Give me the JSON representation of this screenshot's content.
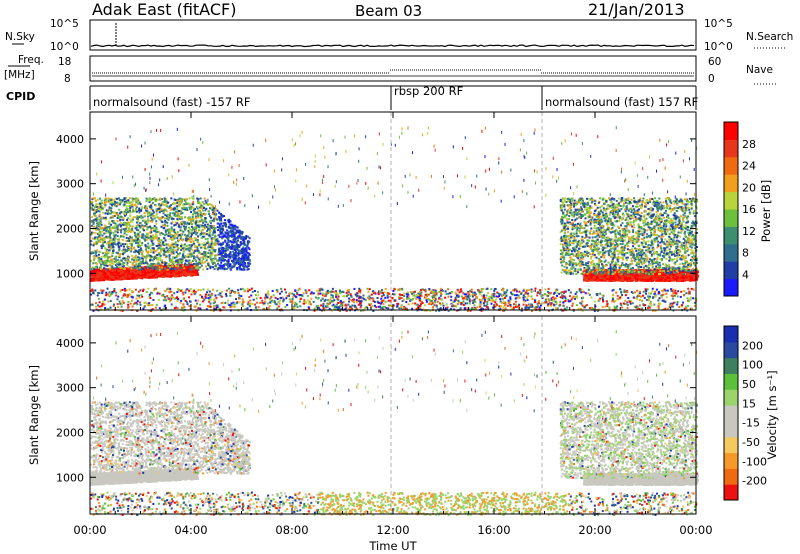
{
  "header": {
    "station": "Adak East (fitACF)",
    "beam": "Beam 03",
    "date": "21/Jan/2013"
  },
  "panel_labels": {
    "nsky": "N.Sky",
    "nsearch": "N.Search",
    "freq_line1": "Freq.",
    "freq_line2": "[MHz]",
    "nave": "Nave",
    "cpid": "CPID",
    "nsky_ticks": [
      "10^5",
      "10^0"
    ],
    "nsearch_ticks": [
      "10^5",
      "10^0"
    ],
    "freq_ticks": [
      "18",
      "8"
    ],
    "nave_ticks": [
      "60",
      "0"
    ]
  },
  "cpid": [
    {
      "label": "normalsound (fast) -157 RF",
      "start_hour": 0,
      "end_hour": 12
    },
    {
      "label": "rbsp 200 RF",
      "start_hour": 12,
      "end_hour": 18
    },
    {
      "label": "normalsound (fast) 157 RF",
      "start_hour": 18,
      "end_hour": 24
    }
  ],
  "colors": {
    "power_scale": [
      "#1a1aff",
      "#1f3fa6",
      "#2f6e8f",
      "#3e8f6f",
      "#6dbf3e",
      "#b8d43a",
      "#f0a01e",
      "#f06a12",
      "#e8361a",
      "#ff0000"
    ],
    "velocity_scale": [
      "#ee1111",
      "#f06a12",
      "#f59a2a",
      "#f5c860",
      "#c8c8c0",
      "#c8c8c0",
      "#9ad46a",
      "#5cc03c",
      "#3e7f5f",
      "#2a4aa0",
      "#1a2fb0"
    ]
  },
  "chart_data": [
    {
      "type": "heatmap",
      "name": "power",
      "xlabel": "Time UT",
      "ylabel": "Slant Range [km]",
      "colorbar_label": "Power [dB]",
      "xlim_hours": [
        0,
        24
      ],
      "ylim": [
        180,
        4600
      ],
      "x_ticks": [
        "00:00",
        "04:00",
        "08:00",
        "12:00",
        "16:00",
        "20:00",
        "00:00"
      ],
      "y_ticks": [
        1000,
        2000,
        3000,
        4000
      ],
      "colorbar_ticks": [
        4,
        8,
        12,
        16,
        20,
        24,
        28
      ],
      "colorbar_range": [
        0,
        30
      ],
      "mode_change_hours": [
        12,
        18
      ]
    },
    {
      "type": "heatmap",
      "name": "velocity",
      "xlabel": "Time UT",
      "ylabel": "Slant Range [km]",
      "colorbar_label": "Velocity [m s⁻¹]",
      "xlim_hours": [
        0,
        24
      ],
      "ylim": [
        180,
        4600
      ],
      "x_ticks": [
        "00:00",
        "04:00",
        "08:00",
        "12:00",
        "16:00",
        "20:00",
        "00:00"
      ],
      "y_ticks": [
        1000,
        2000,
        3000,
        4000
      ],
      "colorbar_ticks": [
        "200",
        "100",
        "50",
        "15",
        "-15",
        "-50",
        "-100",
        "-200"
      ],
      "mode_change_hours": [
        12,
        18
      ]
    }
  ]
}
